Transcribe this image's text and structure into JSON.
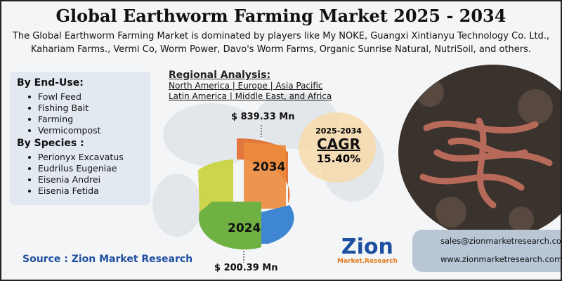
{
  "header": {
    "title": "Global Earthworm Farming Market 2025 - 2034",
    "description": "The Global Earthworm Farming Market is dominated by players like My NOKE, Guangxi Xintianyu Technology Co. Ltd., Kahariam Farms., Vermi Co, Worm Power, Davo's Worm Farms, Organic Sunrise Natural, NutriSoil, and others."
  },
  "segments": [
    {
      "heading": "By End-Use:",
      "items": [
        "Fowl Feed",
        "Fishing Bait",
        "Farming",
        "Vermicompost"
      ]
    },
    {
      "heading": "By Species :",
      "items": [
        "Perionyx Excavatus",
        "Eudrilus Eugeniae",
        "Eisenia Andrei",
        "Eisenia Fetida"
      ]
    }
  ],
  "regional": {
    "heading": "Regional Analysis:",
    "lines": [
      "North America | Europe | Asia Pacific",
      "Latin America | Middle East, and Africa"
    ]
  },
  "market": {
    "end_value": "$ 839.33 Mn",
    "end_year": "2034",
    "start_year": "2024",
    "start_value": "$ 200.39 Mn"
  },
  "cagr": {
    "period": "2025-2034",
    "label": "CAGR",
    "value": "15.40%"
  },
  "source": "Source : Zion Market Research",
  "logo": {
    "name": "Zion",
    "tagline": "Market.Research"
  },
  "contact": {
    "email": "sales@zionmarketresearch.com",
    "website": "www.zionmarketresearch.com"
  }
}
